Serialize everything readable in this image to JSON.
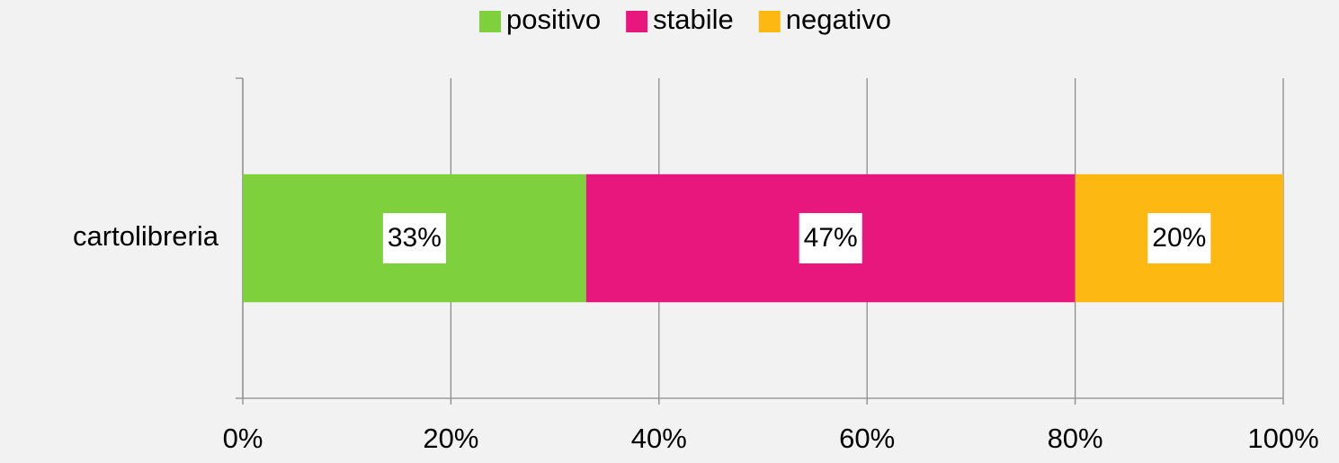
{
  "chart_data": {
    "type": "bar",
    "orientation": "horizontal",
    "categories": [
      "cartolibreria"
    ],
    "series": [
      {
        "name": "positivo",
        "color": "#7ed03c",
        "values": [
          33
        ],
        "value_labels": [
          "33%"
        ]
      },
      {
        "name": "stabile",
        "color": "#e8177d",
        "values": [
          47
        ],
        "value_labels": [
          "47%"
        ]
      },
      {
        "name": "negativo",
        "color": "#fdb812",
        "values": [
          20
        ],
        "value_labels": [
          "20%"
        ]
      }
    ],
    "xlim": [
      0,
      100
    ],
    "xticks": [
      {
        "value": 0,
        "label": "0%"
      },
      {
        "value": 20,
        "label": "20%"
      },
      {
        "value": 40,
        "label": "40%"
      },
      {
        "value": 60,
        "label": "60%"
      },
      {
        "value": 80,
        "label": "80%"
      },
      {
        "value": 100,
        "label": "100%"
      }
    ],
    "grid": true,
    "legend": "top"
  }
}
